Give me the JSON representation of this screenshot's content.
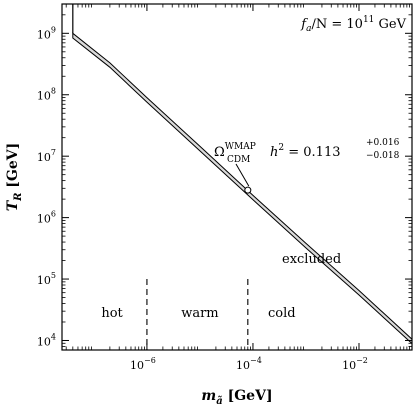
{
  "chart_data": {
    "type": "area",
    "xlabel": {
      "main": "m",
      "sub": "ã",
      "unit": " [GeV]"
    },
    "ylabel": {
      "main": "T",
      "sub": "R",
      "unit": " [GeV]"
    },
    "x_scale": "log",
    "y_scale": "log",
    "xlim": [
      2.5e-08,
      0.1
    ],
    "ylim": [
      7000,
      3000000000.0
    ],
    "x_ticks": [
      {
        "value": 1e-06,
        "label": "10",
        "exp": "−6"
      },
      {
        "value": 0.0001,
        "label": "10",
        "exp": "−4"
      },
      {
        "value": 0.01,
        "label": "10",
        "exp": "−2"
      }
    ],
    "y_ticks": [
      {
        "value": 10000.0,
        "label": "10",
        "exp": "4"
      },
      {
        "value": 100000.0,
        "label": "10",
        "exp": "5"
      },
      {
        "value": 1000000.0,
        "label": "10",
        "exp": "6"
      },
      {
        "value": 10000000.0,
        "label": "10",
        "exp": "7"
      },
      {
        "value": 100000000.0,
        "label": "10",
        "exp": "8"
      },
      {
        "value": 1000000000.0,
        "label": "10",
        "exp": "9"
      }
    ],
    "band": {
      "upper": [
        [
          4e-08,
          1000000000.0
        ],
        [
          2e-07,
          330000000.0
        ],
        [
          1e-06,
          90000000.0
        ],
        [
          1e-05,
          14500000.0
        ],
        [
          0.0001,
          2300000.0
        ],
        [
          0.001,
          380000.0
        ],
        [
          0.01,
          65000.0
        ],
        [
          0.1,
          10500.0
        ]
      ],
      "lower": [
        [
          4e-08,
          840000000.0
        ],
        [
          2e-07,
          280000000.0
        ],
        [
          1e-06,
          76000000.0
        ],
        [
          1e-05,
          12200000.0
        ],
        [
          0.0001,
          1950000.0
        ],
        [
          0.001,
          320000.0
        ],
        [
          0.01,
          55000.0
        ],
        [
          0.1,
          8900.0
        ]
      ],
      "fill": "#d9d9d9",
      "edge": "#000000"
    },
    "excluded_edge_x": 4e-08,
    "marker": {
      "x": 8e-05,
      "y": 2800000.0
    },
    "regions": [
      {
        "label": "hot",
        "x": 2.2e-07
      },
      {
        "label": "warm",
        "x": 1e-05
      },
      {
        "label": "cold",
        "x": 0.00035
      }
    ],
    "region_dividers": [
      {
        "x": 1e-06,
        "y_top": 100000.0
      },
      {
        "x": 8e-05,
        "y_top": 100000.0
      }
    ],
    "region_label_y": 24000.0,
    "annotations": {
      "fa": {
        "main": "f",
        "sub": "a",
        "rest": "/N = 10",
        "exp": "11",
        "unit": " GeV"
      },
      "omega": {
        "symbol": "Ω",
        "sup": "WMAP",
        "sub": "CDM",
        "h": "h",
        "h_exp": "2",
        "eq": " = 0.113",
        "plus": "+0.016",
        "minus": "−0.018"
      },
      "excluded": "excluded"
    }
  }
}
